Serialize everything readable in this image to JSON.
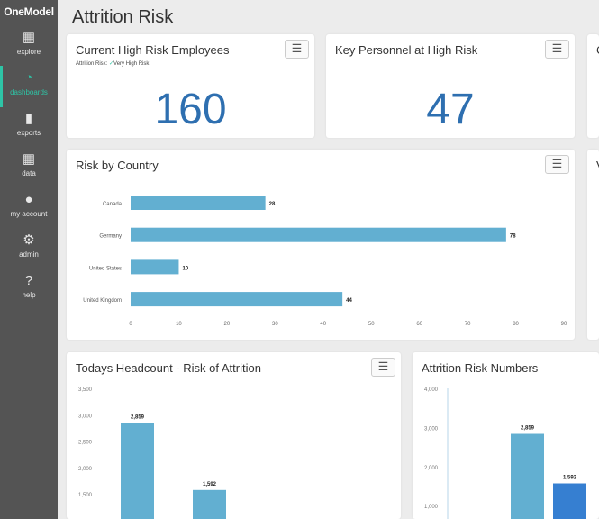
{
  "sidebar": {
    "logo": "OneModel",
    "items": [
      {
        "label": "explore",
        "icon": "grid-icon"
      },
      {
        "label": "dashboards",
        "icon": "dashboard-gauge-icon",
        "active": true
      },
      {
        "label": "exports",
        "icon": "file-icon"
      },
      {
        "label": "data",
        "icon": "data-grid-icon"
      },
      {
        "label": "my account",
        "icon": "user-icon"
      },
      {
        "label": "admin",
        "icon": "gear-icon"
      },
      {
        "label": "help",
        "icon": "help-icon"
      }
    ]
  },
  "page": {
    "title": "Attrition Risk"
  },
  "cards": {
    "high_risk": {
      "title": "Current High Risk Employees",
      "filter_label": "Attrition Risk:",
      "filter_value": "Very High Risk",
      "value": "160"
    },
    "key_personnel": {
      "title": "Key Personnel at High Risk",
      "value": "47"
    },
    "partial_top": {
      "title": "C"
    },
    "partial_mid": {
      "title": "V"
    },
    "risk_by_country": {
      "title": "Risk by Country"
    },
    "headcount": {
      "title": "Todays Headcount - Risk of Attrition"
    },
    "risk_numbers": {
      "title": "Attrition Risk Numbers"
    }
  },
  "colors": {
    "accent": "#2ec4a6",
    "bar": "#62afd1",
    "bar_dark": "#367fd1",
    "big_number": "#2e6fb0"
  },
  "chart_data": [
    {
      "type": "bar",
      "orientation": "horizontal",
      "title": "Risk by Country",
      "categories": [
        "Canada",
        "Germany",
        "United States",
        "United Kingdom"
      ],
      "values": [
        28,
        78,
        10,
        44
      ],
      "xlim": [
        0,
        90
      ],
      "xticks": [
        0,
        10,
        20,
        30,
        40,
        50,
        60,
        70,
        80,
        90
      ]
    },
    {
      "type": "bar",
      "title": "Todays Headcount - Risk of Attrition",
      "values": [
        2859,
        1592
      ],
      "value_labels": [
        "2,859",
        "1,592"
      ],
      "yticks": [
        "1,500",
        "2,000",
        "2,500",
        "3,000",
        "3,500"
      ]
    },
    {
      "type": "bar",
      "title": "Attrition Risk Numbers",
      "values": [
        2859,
        1592
      ],
      "value_labels": [
        "2,859",
        "1,592"
      ],
      "yticks": [
        "1,000",
        "2,000",
        "3,000",
        "4,000"
      ]
    }
  ]
}
